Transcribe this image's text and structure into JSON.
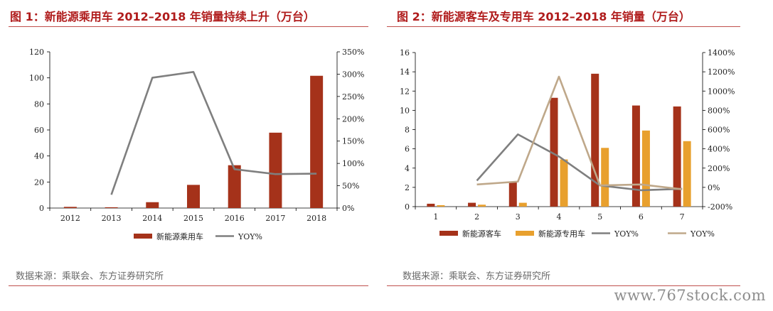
{
  "panels": {
    "p1": {
      "title": "图 1：新能源乘用车 2012–2018 年销量持续上升（万台）",
      "source": "数据来源：乘联会、东方证券研究所"
    },
    "p2": {
      "title": "图 2：新能源客车及专用车 2012–2018 年销量（万台）",
      "source": "数据来源：乘联会、东方证券研究所"
    }
  },
  "watermark": "www.767stock.com",
  "colors": {
    "title": "#b01c1c",
    "bar_red": "#a5321a",
    "bar_orange": "#e8a02e",
    "line_gray": "#7f7f7f",
    "line_tan": "#bfa88a"
  },
  "chart_data": [
    {
      "type": "bar",
      "categories": [
        "2012",
        "2013",
        "2014",
        "2015",
        "2016",
        "2017",
        "2018"
      ],
      "series": [
        {
          "name": "新能源乘用车",
          "kind": "bar",
          "axis": "left",
          "color": "#a5321a",
          "values": [
            0.9,
            0.6,
            4.5,
            17.8,
            32.9,
            57.9,
            101.6
          ]
        },
        {
          "name": "YOY%",
          "kind": "line",
          "axis": "right",
          "color": "#7f7f7f",
          "values": [
            null,
            30,
            292,
            305,
            87,
            76,
            77
          ]
        }
      ],
      "ylim_left": [
        0,
        120
      ],
      "yticks_left": [
        "0",
        "20",
        "40",
        "60",
        "80",
        "100",
        "120"
      ],
      "ylim_right": [
        0,
        350
      ],
      "yticks_right": [
        "0%",
        "50%",
        "100%",
        "150%",
        "200%",
        "250%",
        "300%",
        "350%"
      ],
      "legend": "bottom"
    },
    {
      "type": "bar",
      "categories": [
        "1",
        "2",
        "3",
        "4",
        "5",
        "6",
        "7"
      ],
      "series": [
        {
          "name": "新能源客车",
          "kind": "bar",
          "axis": "left",
          "color": "#a5321a",
          "values": [
            0.3,
            0.4,
            2.6,
            11.3,
            13.8,
            10.5,
            10.4
          ]
        },
        {
          "name": "新能源专用车",
          "kind": "bar",
          "axis": "left",
          "color": "#e8a02e",
          "values": [
            0.15,
            0.2,
            0.4,
            4.9,
            6.1,
            7.9,
            6.8
          ]
        },
        {
          "name": "YOY%",
          "kind": "line",
          "axis": "right",
          "color": "#7f7f7f",
          "values": [
            null,
            70,
            550,
            320,
            20,
            -30,
            -15
          ]
        },
        {
          "name": "YOY%",
          "kind": "line",
          "axis": "right",
          "color": "#bfa88a",
          "values": [
            null,
            30,
            60,
            1150,
            20,
            30,
            -20
          ]
        }
      ],
      "ylim_left": [
        0,
        16
      ],
      "yticks_left": [
        "0",
        "2",
        "4",
        "6",
        "8",
        "10",
        "12",
        "14",
        "16"
      ],
      "ylim_right": [
        -200,
        1400
      ],
      "yticks_right": [
        "-200%",
        "0%",
        "200%",
        "400%",
        "600%",
        "800%",
        "1000%",
        "1200%",
        "1400%"
      ],
      "legend": "bottom"
    }
  ]
}
